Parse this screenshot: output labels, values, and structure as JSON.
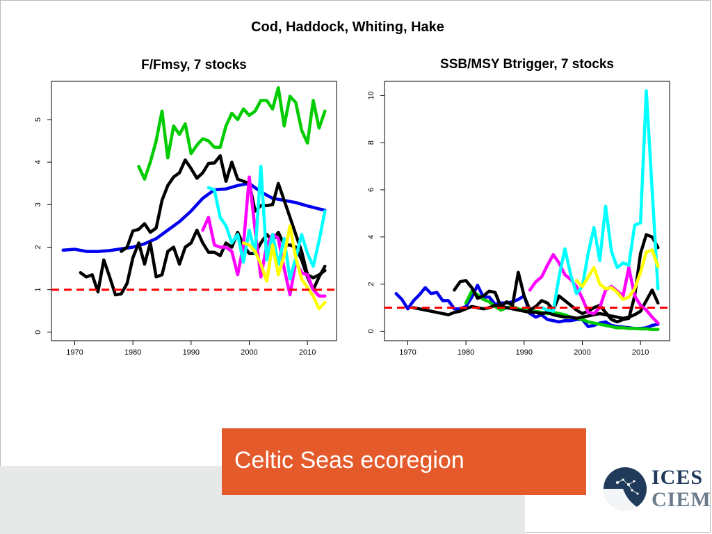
{
  "slide": {
    "title": "Cod, Haddock, Whiting, Hake",
    "region_label": "Celtic Seas ecoregion",
    "logo_text_top": "ICES",
    "logo_text_bottom": "CIEM",
    "colors": {
      "region_box": "#e55a2b",
      "band": "#e7e8e8",
      "logo_navy": "#1f3a5a"
    }
  },
  "chart_data": [
    {
      "type": "line",
      "title": "F/Fmsy,  7 stocks",
      "xlabel": "",
      "ylabel": "",
      "xlim": [
        1966,
        2015
      ],
      "ylim": [
        -0.2,
        5.9
      ],
      "xticks": [
        1970,
        1980,
        1990,
        2000,
        2010
      ],
      "yticks": [
        0,
        1,
        2,
        3,
        4,
        5
      ],
      "grid": false,
      "reference_line": {
        "y": 1,
        "color": "#ff0000",
        "style": "dashed"
      },
      "series": [
        {
          "color": "#00cc00",
          "x": [
            1981,
            1982,
            1983,
            1984,
            1985,
            1986,
            1987,
            1988,
            1989,
            1990,
            1991,
            1992,
            1993,
            1994,
            1995,
            1996,
            1997,
            1998,
            1999,
            2000,
            2001,
            2002,
            2003,
            2004,
            2005,
            2006,
            2007,
            2008,
            2009,
            2010,
            2011,
            2012,
            2013
          ],
          "y": [
            3.9,
            3.6,
            4.0,
            4.5,
            5.2,
            4.1,
            4.85,
            4.65,
            4.9,
            4.2,
            4.4,
            4.55,
            4.5,
            4.35,
            4.35,
            4.85,
            5.15,
            5.0,
            5.25,
            5.1,
            5.2,
            5.45,
            5.45,
            5.25,
            5.75,
            4.85,
            5.55,
            5.4,
            4.75,
            4.45,
            5.45,
            4.8,
            5.2
          ]
        },
        {
          "color": "#0000ee",
          "x": [
            1968,
            1970,
            1972,
            1974,
            1976,
            1978,
            1980,
            1982,
            1984,
            1986,
            1988,
            1990,
            1992,
            1994,
            1996,
            1998,
            2000,
            2002,
            2004,
            2006,
            2008,
            2010,
            2012,
            2013
          ],
          "y": [
            1.93,
            1.95,
            1.9,
            1.9,
            1.92,
            1.96,
            2.0,
            2.08,
            2.2,
            2.4,
            2.6,
            2.85,
            3.15,
            3.35,
            3.37,
            3.45,
            3.5,
            3.3,
            3.15,
            3.1,
            3.05,
            2.97,
            2.9,
            2.87
          ]
        },
        {
          "color": "#000000",
          "x": [
            1978,
            1979,
            1980,
            1981,
            1982,
            1983,
            1984,
            1985,
            1986,
            1987,
            1988,
            1989,
            1990,
            1991,
            1992,
            1993,
            1994,
            1995,
            1996,
            1997,
            1998,
            1999,
            2000,
            2001,
            2002,
            2003,
            2004,
            2005,
            2006,
            2007,
            2008,
            2009,
            2010,
            2011,
            2012,
            2013
          ],
          "y": [
            1.9,
            2.0,
            2.38,
            2.42,
            2.55,
            2.35,
            2.45,
            3.1,
            3.45,
            3.65,
            3.75,
            4.05,
            3.85,
            3.62,
            3.75,
            3.97,
            3.98,
            4.15,
            3.55,
            4.0,
            3.6,
            3.55,
            3.5,
            2.85,
            2.98,
            2.98,
            3.0,
            3.5,
            3.1,
            2.7,
            2.3,
            1.9,
            1.35,
            1.28,
            1.35,
            1.45
          ]
        },
        {
          "color": "#000000",
          "x": [
            1971,
            1972,
            1973,
            1974,
            1975,
            1976,
            1977,
            1978,
            1979,
            1980,
            1981,
            1982,
            1983,
            1984,
            1985,
            1986,
            1987,
            1988,
            1989,
            1990,
            1991,
            1992,
            1993,
            1994,
            1995,
            1996,
            1997,
            1998,
            1999,
            2000,
            2001,
            2002,
            2003,
            2004,
            2005,
            2006,
            2007,
            2008,
            2009,
            2010,
            2011,
            2012,
            2013
          ],
          "y": [
            1.4,
            1.3,
            1.35,
            0.95,
            1.7,
            1.3,
            0.88,
            0.9,
            1.15,
            1.75,
            2.1,
            1.6,
            2.1,
            1.3,
            1.35,
            1.9,
            2.0,
            1.6,
            2.0,
            2.1,
            2.4,
            2.1,
            1.88,
            1.88,
            1.8,
            2.1,
            2.0,
            2.35,
            2.05,
            1.85,
            1.85,
            2.1,
            2.3,
            2.15,
            2.35,
            2.05,
            2.05,
            2.0,
            1.7,
            1.3,
            1.0,
            1.3,
            1.55
          ]
        },
        {
          "color": "#ff00ff",
          "x": [
            1992,
            1993,
            1994,
            1995,
            1996,
            1997,
            1998,
            1999,
            2000,
            2001,
            2002,
            2003,
            2004,
            2005,
            2006,
            2007,
            2008,
            2009,
            2010,
            2011,
            2012,
            2013
          ],
          "y": [
            2.4,
            2.7,
            2.05,
            2.0,
            2.0,
            1.9,
            1.35,
            2.05,
            3.65,
            2.4,
            1.3,
            2.05,
            2.3,
            2.2,
            1.5,
            0.88,
            1.65,
            1.4,
            1.35,
            1.0,
            0.85,
            0.85
          ]
        },
        {
          "color": "#00ffff",
          "x": [
            1993,
            1994,
            1995,
            1996,
            1997,
            1998,
            1999,
            2000,
            2001,
            2002,
            2003,
            2004,
            2005,
            2006,
            2007,
            2008,
            2009,
            2010,
            2011,
            2012,
            2013
          ],
          "y": [
            3.4,
            3.35,
            2.7,
            2.5,
            2.1,
            2.3,
            1.65,
            2.4,
            1.85,
            3.9,
            1.7,
            2.3,
            1.6,
            2.2,
            1.25,
            1.75,
            2.3,
            1.85,
            1.55,
            2.15,
            2.85
          ]
        },
        {
          "color": "#ffff00",
          "x": [
            1999,
            2000,
            2001,
            2002,
            2003,
            2004,
            2005,
            2006,
            2007,
            2008,
            2009,
            2010,
            2011,
            2012,
            2013
          ],
          "y": [
            2.1,
            2.05,
            1.9,
            1.6,
            1.2,
            2.05,
            1.35,
            1.8,
            2.5,
            1.75,
            1.25,
            1.05,
            0.85,
            0.55,
            0.7
          ]
        }
      ]
    },
    {
      "type": "line",
      "title": "SSB/MSY Btrigger, 7 stocks",
      "xlabel": "",
      "ylabel": "",
      "xlim": [
        1966,
        2015
      ],
      "ylim": [
        -0.4,
        10.6
      ],
      "xticks": [
        1970,
        1980,
        1990,
        2000,
        2010
      ],
      "yticks": [
        0,
        2,
        4,
        6,
        8,
        10
      ],
      "grid": false,
      "reference_line": {
        "y": 1,
        "color": "#ff0000",
        "style": "dashed"
      },
      "series": [
        {
          "color": "#0000ee",
          "x": [
            1968,
            1969,
            1970,
            1971,
            1972,
            1973,
            1974,
            1975,
            1976,
            1977,
            1978,
            1979,
            1980,
            1981,
            1982,
            1983,
            1984,
            1985,
            1986,
            1987,
            1988,
            1989,
            1990,
            1991,
            1992,
            1993,
            1994,
            1995,
            1996,
            1997,
            1998,
            1999,
            2000,
            2001,
            2002,
            2003,
            2004,
            2005,
            2006,
            2007,
            2008,
            2009,
            2010,
            2011,
            2012,
            2013
          ],
          "y": [
            1.6,
            1.35,
            0.95,
            1.3,
            1.55,
            1.85,
            1.6,
            1.65,
            1.3,
            1.3,
            0.95,
            0.95,
            1.05,
            1.45,
            1.95,
            1.45,
            1.45,
            1.15,
            1.2,
            1.2,
            1.25,
            1.35,
            1.5,
            0.75,
            0.6,
            0.7,
            0.5,
            0.45,
            0.4,
            0.45,
            0.45,
            0.5,
            0.5,
            0.2,
            0.25,
            0.35,
            0.4,
            0.25,
            0.2,
            0.18,
            0.15,
            0.12,
            0.12,
            0.15,
            0.25,
            0.3
          ]
        },
        {
          "color": "#00cc00",
          "x": [
            1980,
            1981,
            1982,
            1983,
            1984,
            1985,
            1986,
            1987,
            1988,
            1989,
            1990,
            1991,
            1992,
            1993,
            1994,
            1995,
            1996,
            1997,
            1998,
            1999,
            2000,
            2001,
            2002,
            2003,
            2004,
            2005,
            2006,
            2007,
            2008,
            2009,
            2010,
            2011,
            2012,
            2013
          ],
          "y": [
            1.2,
            1.7,
            1.55,
            1.35,
            1.25,
            1.05,
            0.9,
            1.0,
            1.05,
            0.95,
            0.9,
            0.85,
            0.85,
            0.8,
            0.75,
            0.8,
            0.75,
            0.7,
            0.6,
            0.55,
            0.5,
            0.4,
            0.35,
            0.3,
            0.25,
            0.2,
            0.15,
            0.15,
            0.12,
            0.12,
            0.1,
            0.1,
            0.08,
            0.08
          ]
        },
        {
          "color": "#000000",
          "x": [
            1978,
            1979,
            1980,
            1981,
            1982,
            1983,
            1984,
            1985,
            1986,
            1987,
            1988,
            1989,
            1990,
            1991,
            1992,
            1993,
            1994,
            1995,
            1996,
            1997,
            1998,
            1999,
            2000,
            2001,
            2002,
            2003,
            2004,
            2005,
            2006,
            2007,
            2008,
            2009,
            2010,
            2011,
            2012,
            2013
          ],
          "y": [
            1.75,
            2.1,
            2.15,
            1.85,
            1.4,
            1.5,
            1.7,
            1.65,
            1.05,
            1.25,
            1.1,
            2.5,
            1.5,
            0.9,
            1.05,
            1.3,
            1.2,
            0.9,
            1.5,
            1.3,
            1.1,
            0.9,
            0.75,
            0.85,
            1.0,
            1.1,
            0.8,
            0.5,
            0.4,
            0.5,
            0.55,
            1.5,
            3.3,
            4.1,
            4.0,
            3.55
          ]
        },
        {
          "color": "#000000",
          "x": [
            1971,
            1972,
            1973,
            1974,
            1975,
            1976,
            1977,
            1978,
            1979,
            1980,
            1981,
            1982,
            1983,
            1984,
            1985,
            1986,
            1987,
            1988,
            1989,
            1990,
            1991,
            1992,
            1993,
            1994,
            1995,
            1996,
            1997,
            1998,
            1999,
            2000,
            2001,
            2002,
            2003,
            2004,
            2005,
            2006,
            2007,
            2008,
            2009,
            2010,
            2011,
            2012,
            2013
          ],
          "y": [
            1.0,
            0.95,
            0.9,
            0.85,
            0.8,
            0.75,
            0.7,
            0.8,
            0.85,
            0.95,
            1.05,
            1.0,
            0.95,
            1.0,
            1.1,
            1.05,
            1.0,
            0.95,
            0.9,
            0.85,
            0.8,
            0.8,
            0.75,
            0.8,
            0.7,
            0.65,
            0.6,
            0.6,
            0.55,
            0.6,
            0.65,
            0.7,
            0.75,
            0.7,
            0.65,
            0.6,
            0.55,
            0.6,
            0.7,
            0.85,
            1.3,
            1.75,
            1.2
          ]
        },
        {
          "color": "#ff00ff",
          "x": [
            1991,
            1992,
            1993,
            1994,
            1995,
            1996,
            1997,
            1998,
            1999,
            2000,
            2001,
            2002,
            2003,
            2004,
            2005,
            2006,
            2007,
            2008,
            2009,
            2010,
            2011,
            2012,
            2013
          ],
          "y": [
            1.75,
            2.1,
            2.3,
            2.8,
            3.25,
            2.9,
            2.4,
            2.2,
            1.9,
            1.4,
            0.8,
            0.75,
            1.0,
            1.75,
            1.9,
            1.7,
            1.5,
            2.7,
            1.5,
            1.1,
            0.9,
            0.6,
            0.35
          ]
        },
        {
          "color": "#00ffff",
          "x": [
            1993,
            1994,
            1995,
            1996,
            1997,
            1998,
            1999,
            2000,
            2001,
            2002,
            2003,
            2004,
            2005,
            2006,
            2007,
            2008,
            2009,
            2010,
            2011,
            2012,
            2013
          ],
          "y": [
            1.0,
            0.9,
            0.85,
            2.3,
            3.5,
            2.4,
            1.6,
            1.9,
            3.3,
            4.4,
            3.0,
            5.3,
            3.4,
            2.7,
            2.9,
            2.8,
            4.5,
            4.6,
            10.2,
            6.0,
            1.8
          ]
        },
        {
          "color": "#ffff00",
          "x": [
            1999,
            2000,
            2001,
            2002,
            2003,
            2004,
            2005,
            2006,
            2007,
            2008,
            2009,
            2010,
            2011,
            2012,
            2013
          ],
          "y": [
            2.15,
            1.9,
            2.3,
            2.7,
            2.0,
            1.8,
            1.85,
            1.65,
            1.35,
            1.45,
            1.8,
            2.5,
            3.35,
            3.45,
            2.75
          ]
        }
      ]
    }
  ]
}
